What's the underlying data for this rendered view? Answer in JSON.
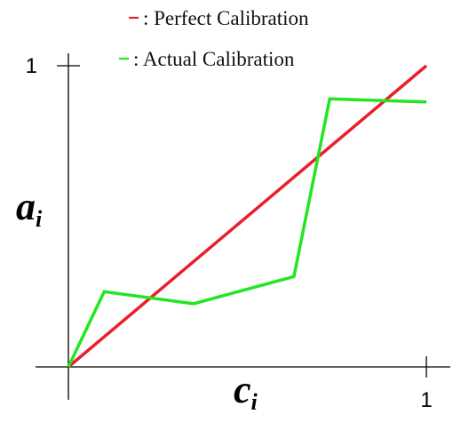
{
  "chart_data": {
    "type": "line",
    "xlabel": "c",
    "xlabel_sub": "i",
    "ylabel": "a",
    "ylabel_sub": "i",
    "xlim": [
      0,
      1
    ],
    "ylim": [
      0,
      1
    ],
    "x_ticks": [
      {
        "value": 1,
        "label": "1"
      }
    ],
    "y_ticks": [
      {
        "value": 1,
        "label": "1"
      }
    ],
    "grid": false,
    "legend_position": "top",
    "legend_separator": ": ",
    "series": [
      {
        "name": "Perfect Calibration",
        "color": "#e8202a",
        "x": [
          0,
          1
        ],
        "y": [
          0,
          1
        ]
      },
      {
        "name": "Actual Calibration",
        "color": "#22e622",
        "x": [
          0,
          0.1,
          0.35,
          0.63,
          0.73,
          1.0
        ],
        "y": [
          0,
          0.25,
          0.21,
          0.3,
          0.89,
          0.88
        ]
      }
    ]
  }
}
